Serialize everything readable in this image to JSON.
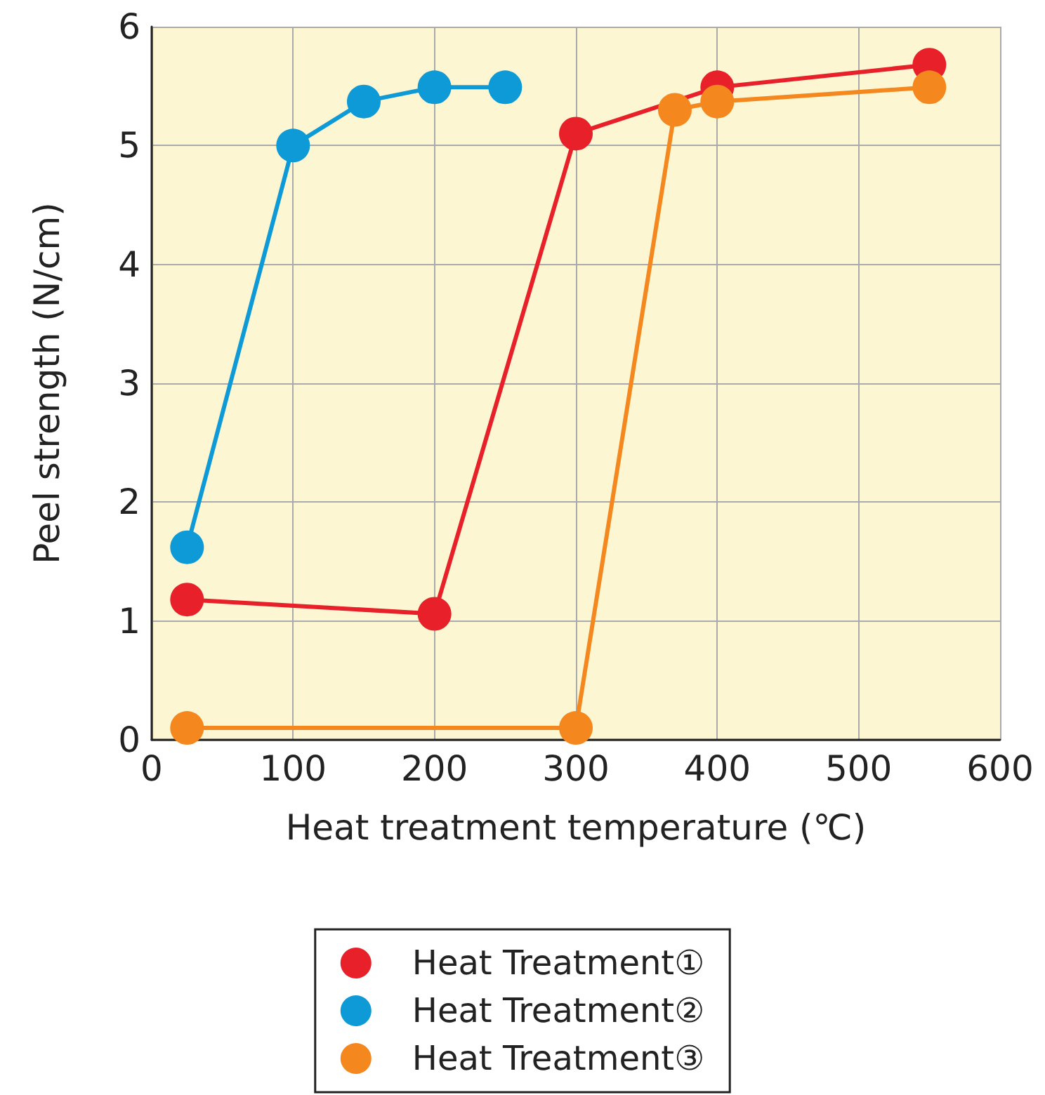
{
  "chart_data": {
    "type": "line",
    "xlabel": "Heat treatment temperature (℃)",
    "ylabel": "Peel strength (N/cm)",
    "xlim": [
      0,
      600
    ],
    "xticks": [
      0,
      100,
      200,
      300,
      400,
      500,
      600
    ],
    "ylim": [
      0,
      6
    ],
    "yticks": [
      0,
      1,
      2,
      3,
      4,
      5,
      6
    ],
    "grid": true,
    "legend": "bottom",
    "marker": "circle",
    "line_style": "solid",
    "series": [
      {
        "name": "Heat Treatment①",
        "color": "#e8202a",
        "x": [
          25,
          200,
          300,
          400,
          550
        ],
        "values": [
          1.18,
          1.06,
          5.1,
          5.49,
          5.68
        ]
      },
      {
        "name": "Heat Treatment②",
        "color": "#0d9ad6",
        "x": [
          25,
          100,
          150,
          200,
          250
        ],
        "values": [
          1.62,
          5.0,
          5.37,
          5.49,
          5.49
        ]
      },
      {
        "name": "Heat Treatment③",
        "color": "#f5871f",
        "x": [
          25,
          300,
          370,
          400,
          550
        ],
        "values": [
          0.1,
          0.1,
          5.3,
          5.37,
          5.49
        ]
      }
    ]
  }
}
